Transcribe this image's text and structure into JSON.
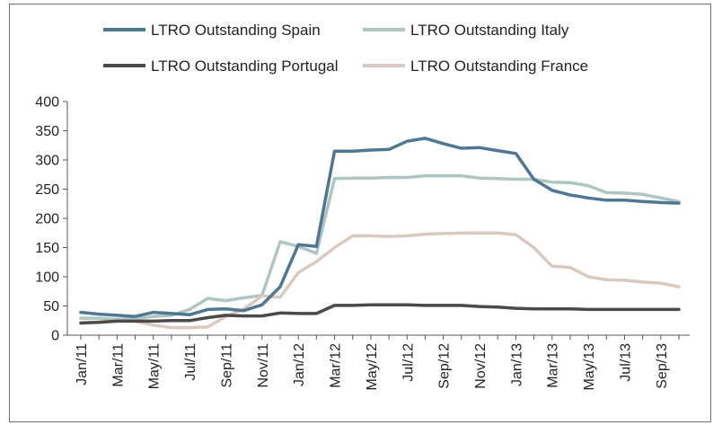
{
  "chart_data": {
    "type": "line",
    "title": "",
    "xlabel": "",
    "ylabel": "",
    "ylim": [
      0,
      400
    ],
    "yticks": [
      0,
      50,
      100,
      150,
      200,
      250,
      300,
      350,
      400
    ],
    "grid": false,
    "legend_position": "top",
    "x": [
      "Jan/11",
      "Feb/11",
      "Mar/11",
      "Apr/11",
      "May/11",
      "Jun/11",
      "Jul/11",
      "Aug/11",
      "Sep/11",
      "Oct/11",
      "Nov/11",
      "Dec/11",
      "Jan/12",
      "Feb/12",
      "Mar/12",
      "Apr/12",
      "May/12",
      "Jun/12",
      "Jul/12",
      "Aug/12",
      "Sep/12",
      "Oct/12",
      "Nov/12",
      "Dec/12",
      "Jan/13",
      "Feb/13",
      "Mar/13",
      "Apr/13",
      "May/13",
      "Jun/13",
      "Jul/13",
      "Aug/13",
      "Sep/13",
      "Oct/13"
    ],
    "x_tick_labels": [
      "Jan/11",
      "Mar/11",
      "May/11",
      "Jul/11",
      "Sep/11",
      "Nov/11",
      "Jan/12",
      "Mar/12",
      "May/12",
      "Jul/12",
      "Sep/12",
      "Nov/12",
      "Jan/13",
      "Mar/13",
      "May/13",
      "Jul/13",
      "Sep/13"
    ],
    "series": [
      {
        "name": "LTRO Outstanding Spain",
        "color": "#4e7891",
        "values": [
          39,
          36,
          34,
          32,
          39,
          37,
          35,
          44,
          45,
          42,
          52,
          83,
          155,
          152,
          315,
          315,
          317,
          318,
          332,
          337,
          328,
          320,
          321,
          316,
          311,
          267,
          248,
          240,
          235,
          231,
          231,
          229,
          227,
          226
        ]
      },
      {
        "name": "LTRO Outstanding Italy",
        "color": "#aec5c2",
        "values": [
          29,
          29,
          27,
          28,
          32,
          34,
          44,
          63,
          59,
          64,
          68,
          160,
          152,
          140,
          268,
          269,
          269,
          270,
          270,
          273,
          273,
          273,
          269,
          268,
          267,
          267,
          262,
          261,
          256,
          244,
          243,
          241,
          235,
          229
        ]
      },
      {
        "name": "LTRO Outstanding Portugal",
        "color": "#4a4a4a",
        "values": [
          21,
          22,
          24,
          24,
          24,
          25,
          25,
          30,
          34,
          33,
          33,
          38,
          37,
          37,
          51,
          51,
          52,
          52,
          52,
          51,
          51,
          51,
          49,
          48,
          46,
          45,
          45,
          45,
          44,
          44,
          44,
          44,
          44,
          44
        ]
      },
      {
        "name": "LTRO Outstanding France",
        "color": "#d9c9c0",
        "values": [
          20,
          23,
          24,
          24,
          17,
          13,
          13,
          14,
          32,
          45,
          67,
          65,
          107,
          126,
          150,
          170,
          170,
          169,
          170,
          173,
          174,
          175,
          175,
          175,
          172,
          150,
          118,
          116,
          100,
          95,
          94,
          91,
          89,
          83
        ]
      }
    ]
  }
}
